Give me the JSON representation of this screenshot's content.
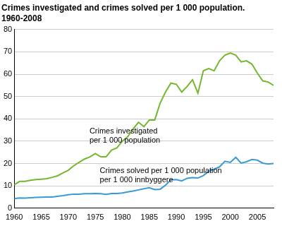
{
  "chart_data": {
    "type": "line",
    "title": "Crimes investigated and crimes solved per 1 000 population.",
    "subtitle": "1960-2008",
    "x": [
      1960,
      1961,
      1962,
      1963,
      1964,
      1965,
      1966,
      1967,
      1968,
      1969,
      1970,
      1971,
      1972,
      1973,
      1974,
      1975,
      1976,
      1977,
      1978,
      1979,
      1980,
      1981,
      1982,
      1983,
      1984,
      1985,
      1986,
      1987,
      1988,
      1989,
      1990,
      1991,
      1992,
      1993,
      1994,
      1995,
      1996,
      1997,
      1998,
      1999,
      2000,
      2001,
      2002,
      2003,
      2004,
      2005,
      2006,
      2007,
      2008
    ],
    "series": [
      {
        "name": "Crimes investigated per 1 000 population",
        "color": "#74b72e",
        "values": [
          10.5,
          12,
          12,
          12.5,
          12.8,
          13,
          13.2,
          13.8,
          14.5,
          15.8,
          17,
          19,
          20.5,
          22,
          23,
          24.5,
          23,
          23,
          26,
          27,
          30,
          32,
          35.5,
          38.5,
          36.5,
          39.5,
          39.5,
          47,
          52,
          56,
          55.5,
          52,
          54.5,
          57.5,
          51.5,
          61.5,
          62.5,
          61.5,
          66,
          68.5,
          69.5,
          68.5,
          65.5,
          66,
          64.5,
          60.5,
          57,
          56.5,
          55
        ]
      },
      {
        "name": "Crimes solved per 1 000 population",
        "color": "#3a9ad6",
        "values": [
          4.3,
          4.6,
          4.5,
          4.7,
          4.8,
          4.9,
          5,
          5,
          5.3,
          5.6,
          6,
          6.3,
          6.3,
          6.5,
          6.5,
          6.6,
          6.5,
          6.2,
          6.6,
          6.6,
          6.8,
          7.3,
          7.7,
          8.2,
          8.7,
          9.2,
          8.3,
          8.5,
          10.3,
          12.7,
          12.8,
          12.2,
          13.4,
          13.7,
          13.5,
          14.6,
          16.5,
          17.5,
          18.5,
          21,
          20.5,
          22.8,
          20.2,
          20.8,
          21.8,
          21.5,
          20.2,
          19.8,
          20
        ]
      }
    ],
    "annotations": [
      {
        "text": [
          "Crimes investigated",
          "per 1 000 population"
        ]
      },
      {
        "text": [
          "Crimes solved per 1 000 population",
          "per 1 000 innbyggere"
        ]
      }
    ],
    "xlim": [
      1960,
      2008
    ],
    "xticks": [
      1960,
      1965,
      1970,
      1975,
      1980,
      1985,
      1990,
      1995,
      2000,
      2005
    ],
    "ylim": [
      0,
      80
    ],
    "yticks": [
      0,
      10,
      20,
      30,
      40,
      50,
      60,
      70,
      80
    ],
    "grid": "y"
  }
}
